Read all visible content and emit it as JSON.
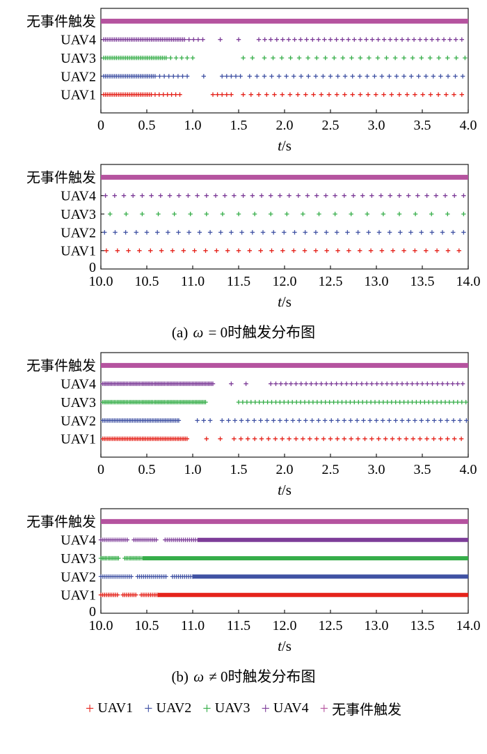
{
  "figure": {
    "axis_label": {
      "italic": "t",
      "rest": "/s"
    }
  },
  "captions": {
    "a": {
      "prefix": "(a) ",
      "symbol": "ω",
      "rest": " = 0时触发分布图"
    },
    "b": {
      "prefix": "(b) ",
      "symbol": "ω",
      "rest": " ≠ 0时触发分布图"
    }
  },
  "legend": {
    "items": [
      {
        "key": "uav1",
        "label": "UAV1",
        "color": "#e5231b"
      },
      {
        "key": "uav2",
        "label": "UAV2",
        "color": "#3f51a3"
      },
      {
        "key": "uav3",
        "label": "UAV3",
        "color": "#35ad48"
      },
      {
        "key": "uav4",
        "label": "UAV4",
        "color": "#7d3c98"
      },
      {
        "key": "no-event-trigger",
        "label": "无事件触发",
        "color": "#b5539f"
      }
    ]
  },
  "chart_data": [
    {
      "type": "scatter",
      "title": "(a) omega = 0, transient interval",
      "xlabel": "t/s",
      "xlim": [
        0,
        4
      ],
      "xticks": [
        "0",
        "0.5",
        "1.0",
        "1.5",
        "2.0",
        "2.5",
        "3.0",
        "3.5",
        "4.0"
      ],
      "ylim": [
        0,
        5.7
      ],
      "y_zero_label": "",
      "rows": [
        {
          "key": "no-event-trigger",
          "name": "无事件触发",
          "y": 5,
          "color": "#b5539f",
          "line_width": 7,
          "segments": [
            {
              "solid": true,
              "from": 0,
              "to": 4
            }
          ]
        },
        {
          "key": "uav4",
          "name": "UAV4",
          "y": 4,
          "color": "#7d3c98",
          "segments": [
            {
              "from": 0.03,
              "to": 0.92,
              "step": 0.02
            },
            {
              "from": 0.96,
              "to": 1.12,
              "step": 0.05
            },
            {
              "from": 1.3,
              "to": 1.3,
              "step": 1
            },
            {
              "from": 1.5,
              "to": 1.5,
              "step": 1
            },
            {
              "from": 1.72,
              "to": 3.98,
              "step": 0.065
            }
          ]
        },
        {
          "key": "uav3",
          "name": "UAV3",
          "y": 3,
          "color": "#35ad48",
          "segments": [
            {
              "from": 0.03,
              "to": 0.72,
              "step": 0.02
            },
            {
              "from": 0.76,
              "to": 1.02,
              "step": 0.06
            },
            {
              "from": 1.55,
              "to": 1.65,
              "step": 0.1
            },
            {
              "from": 1.78,
              "to": 3.98,
              "step": 0.095
            }
          ]
        },
        {
          "key": "uav2",
          "name": "UAV2",
          "y": 2,
          "color": "#3f51a3",
          "segments": [
            {
              "from": 0.03,
              "to": 0.6,
              "step": 0.02
            },
            {
              "from": 0.64,
              "to": 0.97,
              "step": 0.05
            },
            {
              "from": 1.12,
              "to": 1.12,
              "step": 1
            },
            {
              "from": 1.32,
              "to": 1.52,
              "step": 0.05
            },
            {
              "from": 1.62,
              "to": 3.98,
              "step": 0.08
            }
          ]
        },
        {
          "key": "uav1",
          "name": "UAV1",
          "y": 1,
          "color": "#e5231b",
          "segments": [
            {
              "from": 0.03,
              "to": 0.55,
              "step": 0.02
            },
            {
              "from": 0.59,
              "to": 0.88,
              "step": 0.045
            },
            {
              "from": 1.22,
              "to": 1.42,
              "step": 0.05
            },
            {
              "from": 1.55,
              "to": 3.98,
              "step": 0.085
            }
          ]
        }
      ]
    },
    {
      "type": "scatter",
      "title": "(a) omega = 0, steady interval",
      "xlabel": "t/s",
      "xlim": [
        10,
        14
      ],
      "xticks": [
        "10.0",
        "10.5",
        "11.0",
        "11.5",
        "12.0",
        "12.5",
        "13.0",
        "13.5",
        "14.0"
      ],
      "ylim": [
        0,
        5.7
      ],
      "y_zero_label": "0",
      "rows": [
        {
          "key": "no-event-trigger",
          "name": "无事件触发",
          "y": 5,
          "color": "#b5539f",
          "line_width": 7,
          "segments": [
            {
              "solid": true,
              "from": 10,
              "to": 14
            }
          ]
        },
        {
          "key": "uav4",
          "name": "UAV4",
          "y": 4,
          "color": "#7d3c98",
          "segments": [
            {
              "from": 10.05,
              "to": 13.98,
              "step": 0.1
            }
          ]
        },
        {
          "key": "uav3",
          "name": "UAV3",
          "y": 3,
          "color": "#35ad48",
          "segments": [
            {
              "from": 10.1,
              "to": 13.96,
              "step": 0.175
            }
          ]
        },
        {
          "key": "uav2",
          "name": "UAV2",
          "y": 2,
          "color": "#3f51a3",
          "segments": [
            {
              "from": 10.04,
              "to": 13.98,
              "step": 0.115
            }
          ]
        },
        {
          "key": "uav1",
          "name": "UAV1",
          "y": 1,
          "color": "#e5231b",
          "segments": [
            {
              "from": 10.06,
              "to": 13.98,
              "step": 0.12
            }
          ]
        }
      ]
    },
    {
      "type": "scatter",
      "title": "(b) omega != 0, transient interval",
      "xlabel": "t/s",
      "xlim": [
        0,
        4
      ],
      "xticks": [
        "0",
        "0.5",
        "1.0",
        "1.5",
        "2.0",
        "2.5",
        "3.0",
        "3.5",
        "4.0"
      ],
      "ylim": [
        0,
        5.7
      ],
      "y_zero_label": "",
      "rows": [
        {
          "key": "no-event-trigger",
          "name": "无事件触发",
          "y": 5,
          "color": "#b5539f",
          "line_width": 7,
          "segments": [
            {
              "solid": true,
              "from": 0,
              "to": 4
            }
          ]
        },
        {
          "key": "uav4",
          "name": "UAV4",
          "y": 4,
          "color": "#7d3c98",
          "segments": [
            {
              "from": 0.02,
              "to": 1.22,
              "step": 0.016
            },
            {
              "from": 1.42,
              "to": 1.42,
              "step": 1
            },
            {
              "from": 1.58,
              "to": 1.58,
              "step": 1
            },
            {
              "from": 1.85,
              "to": 3.98,
              "step": 0.055
            }
          ]
        },
        {
          "key": "uav3",
          "name": "UAV3",
          "y": 3,
          "color": "#35ad48",
          "segments": [
            {
              "from": 0.02,
              "to": 1.15,
              "step": 0.016
            },
            {
              "from": 1.5,
              "to": 3.98,
              "step": 0.045
            }
          ]
        },
        {
          "key": "uav2",
          "name": "UAV2",
          "y": 2,
          "color": "#3f51a3",
          "segments": [
            {
              "from": 0.02,
              "to": 0.85,
              "step": 0.018
            },
            {
              "from": 1.05,
              "to": 1.2,
              "step": 0.07
            },
            {
              "from": 1.32,
              "to": 3.98,
              "step": 0.07
            }
          ]
        },
        {
          "key": "uav1",
          "name": "UAV1",
          "y": 1,
          "color": "#e5231b",
          "segments": [
            {
              "from": 0.02,
              "to": 0.95,
              "step": 0.018
            },
            {
              "from": 1.15,
              "to": 1.15,
              "step": 1
            },
            {
              "from": 1.3,
              "to": 1.3,
              "step": 1
            },
            {
              "from": 1.45,
              "to": 3.98,
              "step": 0.075
            }
          ]
        }
      ]
    },
    {
      "type": "scatter",
      "title": "(b) omega != 0, steady interval",
      "xlabel": "t/s",
      "xlim": [
        10,
        14
      ],
      "xticks": [
        "10.0",
        "10.5",
        "11.0",
        "11.5",
        "12.0",
        "12.5",
        "13.0",
        "13.5",
        "14.0"
      ],
      "ylim": [
        0,
        5.7
      ],
      "y_zero_label": "0",
      "rows": [
        {
          "key": "no-event-trigger",
          "name": "无事件触发",
          "y": 5,
          "color": "#b5539f",
          "line_width": 7,
          "segments": [
            {
              "solid": true,
              "from": 10,
              "to": 14
            }
          ]
        },
        {
          "key": "uav4",
          "name": "UAV4",
          "y": 4,
          "color": "#7d3c98",
          "line_width": 6,
          "segments": [
            {
              "from": 10.0,
              "to": 10.3,
              "step": 0.022
            },
            {
              "from": 10.36,
              "to": 10.62,
              "step": 0.022
            },
            {
              "from": 10.7,
              "to": 11.05,
              "step": 0.022
            },
            {
              "solid": true,
              "from": 11.05,
              "to": 14
            }
          ]
        },
        {
          "key": "uav3",
          "name": "UAV3",
          "y": 3,
          "color": "#35ad48",
          "line_width": 6,
          "segments": [
            {
              "from": 10.0,
              "to": 10.2,
              "step": 0.016
            },
            {
              "from": 10.26,
              "to": 10.45,
              "step": 0.016
            },
            {
              "solid": true,
              "from": 10.45,
              "to": 14
            }
          ]
        },
        {
          "key": "uav2",
          "name": "UAV2",
          "y": 2,
          "color": "#3f51a3",
          "line_width": 6,
          "segments": [
            {
              "from": 10.0,
              "to": 10.34,
              "step": 0.022
            },
            {
              "from": 10.4,
              "to": 10.72,
              "step": 0.022
            },
            {
              "from": 10.78,
              "to": 11.0,
              "step": 0.022
            },
            {
              "solid": true,
              "from": 11.0,
              "to": 14
            }
          ]
        },
        {
          "key": "uav1",
          "name": "UAV1",
          "y": 1,
          "color": "#e5231b",
          "line_width": 6,
          "segments": [
            {
              "from": 10.0,
              "to": 10.18,
              "step": 0.02
            },
            {
              "from": 10.24,
              "to": 10.38,
              "step": 0.02
            },
            {
              "from": 10.44,
              "to": 10.62,
              "step": 0.02
            },
            {
              "solid": true,
              "from": 10.62,
              "to": 14
            }
          ]
        }
      ]
    }
  ]
}
